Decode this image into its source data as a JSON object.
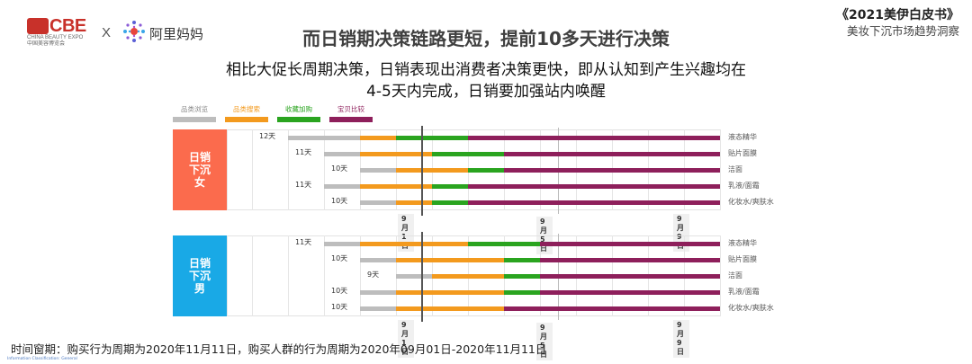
{
  "header": {
    "logo_cbe": "CBE",
    "logo_cbe_sub1": "CHINA BEAUTY EXPO",
    "logo_cbe_sub2": "中国美容博览会",
    "separator": "X",
    "logo_alimama": "阿里妈妈",
    "book_title": "《2021美伊白皮书》",
    "book_subtitle": "美妆下沉市场趋势洞察"
  },
  "headline": "而日销期决策链路更短，提前10多天进行决策",
  "subline1": "相比大促长周期决策，日销表现出消费者决策更快，即从认知到产生兴趣均在",
  "subline2": "4-5天内完成，日销要加强站内唤醒",
  "colors": {
    "browse": "#bdbdbd",
    "search": "#f39a1e",
    "collect": "#2aa41f",
    "compare": "#8e1f5b",
    "female": "#fb6b4d",
    "male": "#19a9e6"
  },
  "legend": [
    {
      "label": "品类浏览",
      "color": "#bdbdbd"
    },
    {
      "label": "品类搜索",
      "color": "#f39a1e"
    },
    {
      "label": "收藏加购",
      "color": "#2aa41f"
    },
    {
      "label": "宝贝比较",
      "color": "#8e1f5b"
    }
  ],
  "chart_data": {
    "type": "bar",
    "subtype": "horizontal-gantt",
    "title": "而日销期决策链路更短，提前10多天进行决策",
    "x_unit": "day",
    "x_ticks": [
      "9月1日",
      "9月5日",
      "9月9日"
    ],
    "categories": [
      "液态精华",
      "贴片面膜",
      "洁面",
      "乳液/面霜",
      "化妆水/爽肤水"
    ],
    "stages": [
      "品类浏览",
      "品类搜索",
      "收藏加购",
      "宝贝比较"
    ],
    "panels": [
      {
        "name": "日销下沉女",
        "label": "日销\n下沉\n女",
        "rows": [
          {
            "category": "液态精华",
            "days_label": "12天",
            "days": 12,
            "stage_days": [
              2,
              1,
              2,
              7
            ]
          },
          {
            "category": "贴片面膜",
            "days_label": "11天",
            "days": 11,
            "stage_days": [
              1,
              2,
              2,
              6
            ]
          },
          {
            "category": "洁面",
            "days_label": "10天",
            "days": 10,
            "stage_days": [
              1,
              2,
              1,
              6
            ]
          },
          {
            "category": "乳液/面霜",
            "days_label": "11天",
            "days": 11,
            "stage_days": [
              1,
              2,
              1,
              7
            ]
          },
          {
            "category": "化妆水/爽肤水",
            "days_label": "10天",
            "days": 10,
            "stage_days": [
              1,
              1,
              1,
              7
            ]
          }
        ]
      },
      {
        "name": "日销下沉男",
        "label": "日销\n下沉\n男",
        "rows": [
          {
            "category": "液态精华",
            "days_label": "11天",
            "days": 11,
            "stage_days": [
              1,
              3,
              2,
              5
            ]
          },
          {
            "category": "贴片面膜",
            "days_label": "10天",
            "days": 10,
            "stage_days": [
              1,
              3,
              1,
              5
            ]
          },
          {
            "category": "洁面",
            "days_label": "9天",
            "days": 9,
            "stage_days": [
              1,
              2,
              1,
              5
            ]
          },
          {
            "category": "乳液/面霜",
            "days_label": "10天",
            "days": 10,
            "stage_days": [
              1,
              3,
              1,
              5
            ]
          },
          {
            "category": "化妆水/爽肤水",
            "days_label": "10天",
            "days": 10,
            "stage_days": [
              1,
              3,
              0,
              6
            ]
          }
        ]
      }
    ],
    "legend_position": "top-left",
    "grid": true
  },
  "footnote": "时间窗期：购买行为周期为2020年11月11日，购买人群的行为周期为2020年09月01日-2020年11月11日",
  "classification": "Information Classification: General"
}
